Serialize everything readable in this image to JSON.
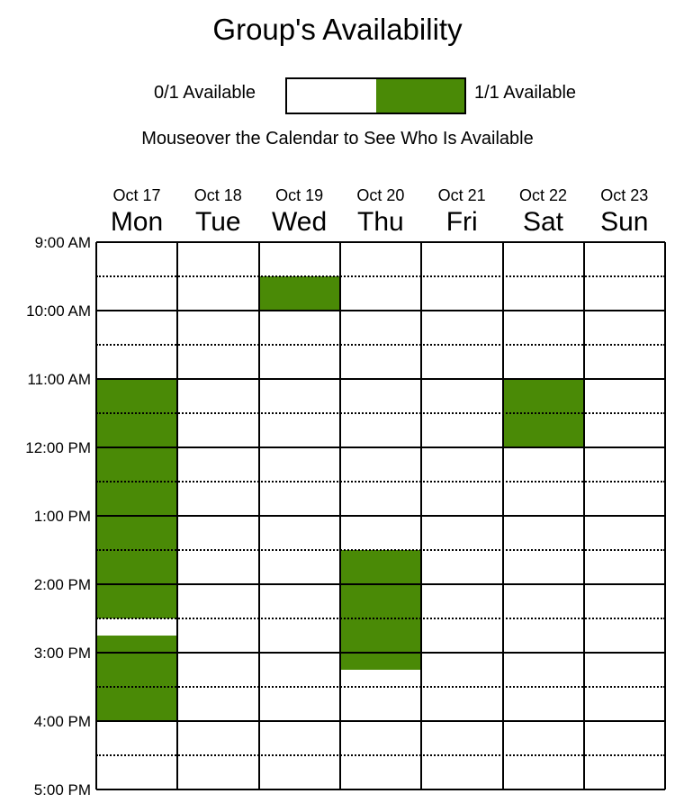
{
  "title": "Group's Availability",
  "legend": {
    "min_label": "0/1 Available",
    "max_label": "1/1 Available",
    "min_color": "#ffffff",
    "max_color": "#4a8a06"
  },
  "instructions": "Mouseover the Calendar to See Who Is Available",
  "days": [
    {
      "date": "Oct 17",
      "name": "Mon"
    },
    {
      "date": "Oct 18",
      "name": "Tue"
    },
    {
      "date": "Oct 19",
      "name": "Wed"
    },
    {
      "date": "Oct 20",
      "name": "Thu"
    },
    {
      "date": "Oct 21",
      "name": "Fri"
    },
    {
      "date": "Oct 22",
      "name": "Sat"
    },
    {
      "date": "Oct 23",
      "name": "Sun"
    }
  ],
  "times": [
    "9:00 AM",
    "10:00 AM",
    "11:00 AM",
    "12:00 PM",
    "1:00 PM",
    "2:00 PM",
    "3:00 PM",
    "4:00 PM",
    "5:00 PM"
  ],
  "availability": [
    {
      "day": "Mon",
      "start": "11:00 AM",
      "end": "2:30 PM",
      "count": "1/1"
    },
    {
      "day": "Mon",
      "start": "2:45 PM",
      "end": "4:00 PM",
      "count": "1/1"
    },
    {
      "day": "Wed",
      "start": "9:30 AM",
      "end": "10:00 AM",
      "count": "1/1"
    },
    {
      "day": "Thu",
      "start": "1:30 PM",
      "end": "3:15 PM",
      "count": "1/1"
    },
    {
      "day": "Sat",
      "start": "11:00 AM",
      "end": "12:00 PM",
      "count": "1/1"
    }
  ],
  "colors": {
    "available": "#4a8a06",
    "unavailable": "#ffffff",
    "grid": "#000000"
  }
}
